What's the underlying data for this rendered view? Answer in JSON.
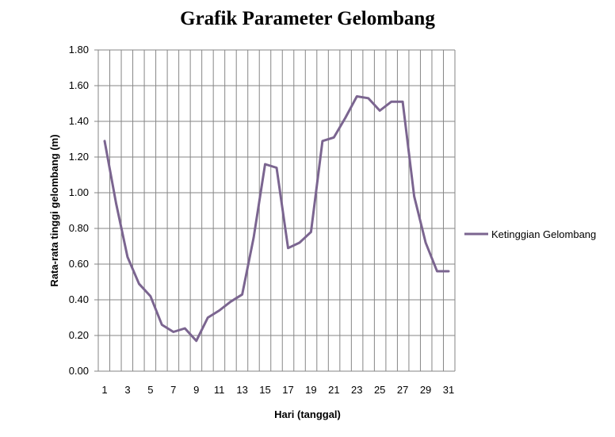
{
  "chart_data": {
    "type": "line",
    "title": "Grafik Parameter Gelombang",
    "xlabel": "Hari (tanggal)",
    "ylabel": "Rata-rata tinggi gelombang (m)",
    "xlim": [
      1,
      31
    ],
    "ylim": [
      0,
      1.8
    ],
    "y_tick_labels": [
      "0.00",
      "0.20",
      "0.40",
      "0.60",
      "0.80",
      "1.00",
      "1.20",
      "1.40",
      "1.60",
      "1.80"
    ],
    "x_tick_labels": [
      "1",
      "3",
      "5",
      "7",
      "9",
      "11",
      "13",
      "15",
      "17",
      "19",
      "21",
      "23",
      "25",
      "27",
      "29",
      "31"
    ],
    "grid": true,
    "legend_position": "right",
    "x": [
      1,
      2,
      3,
      4,
      5,
      6,
      7,
      8,
      9,
      10,
      11,
      12,
      13,
      14,
      15,
      16,
      17,
      18,
      19,
      20,
      21,
      22,
      23,
      24,
      25,
      26,
      27,
      28,
      29,
      30,
      31
    ],
    "series": [
      {
        "name": "Ketinggian Gelombang",
        "color": "#7b6590",
        "values": [
          1.29,
          0.94,
          0.64,
          0.49,
          0.42,
          0.26,
          0.22,
          0.24,
          0.17,
          0.3,
          0.34,
          0.39,
          0.43,
          0.75,
          1.16,
          1.14,
          0.69,
          0.72,
          0.78,
          1.29,
          1.31,
          1.42,
          1.54,
          1.53,
          1.46,
          1.51,
          1.51,
          0.98,
          0.72,
          0.56,
          0.56
        ]
      }
    ]
  }
}
